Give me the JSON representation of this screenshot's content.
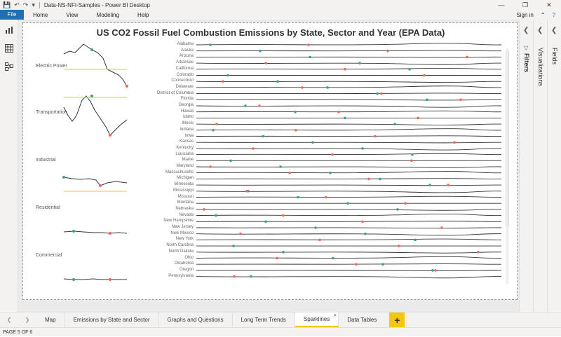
{
  "titlebar": {
    "doc_title": "Data-NS-NFI-Samples - Power BI Desktop",
    "quick_access": [
      "save-icon",
      "undo-icon",
      "redo-icon",
      "customize-icon"
    ],
    "window_controls": [
      "minimize-icon",
      "restore-icon",
      "close-icon"
    ]
  },
  "menu": {
    "file": "File",
    "items": [
      "Home",
      "View",
      "Modeling",
      "Help"
    ],
    "sign_in": "Sign in"
  },
  "report": {
    "title": "US CO2 Fossil Fuel Combustion Emissions by State, Sector and Year (EPA Data)",
    "sectors": [
      "Electric Power",
      "Transportation",
      "Industrial",
      "Residential",
      "Commercial"
    ],
    "states": [
      "Alabama",
      "Alaska",
      "Arizona",
      "Arkansas",
      "California",
      "Colorado",
      "Connecticut",
      "Delaware",
      "District of Columbia",
      "Florida",
      "Georgia",
      "Hawaii",
      "Idaho",
      "Illinois",
      "Indiana",
      "Iowa",
      "Kansas",
      "Kentucky",
      "Louisiana",
      "Maine",
      "Maryland",
      "Massachusetts",
      "Michigan",
      "Minnesota",
      "Mississippi",
      "Missouri",
      "Montana",
      "Nebraska",
      "Nevada",
      "New Hampshire",
      "New Jersey",
      "New Mexico",
      "New York",
      "North Carolina",
      "North Dakota",
      "Ohio",
      "Oklahoma",
      "Oregon",
      "Pennsylvania"
    ]
  },
  "panes": {
    "filters": "Filters",
    "visualizations": "Visualizations",
    "fields": "Fields"
  },
  "tabs": {
    "items": [
      "Map",
      "Emissions by State and Sector",
      "Graphs and Questions",
      "Long Term Trends",
      "Sparklines",
      "Data Tables"
    ],
    "active": "Sparklines",
    "add": "+"
  },
  "status": {
    "page": "PAGE 5 OF 6"
  },
  "colors": {
    "accent": "#f2c80f",
    "file_blue": "#1f6fb4",
    "max_marker": "#3a9e8f",
    "min_marker": "#f2665e",
    "line": "#333333"
  }
}
